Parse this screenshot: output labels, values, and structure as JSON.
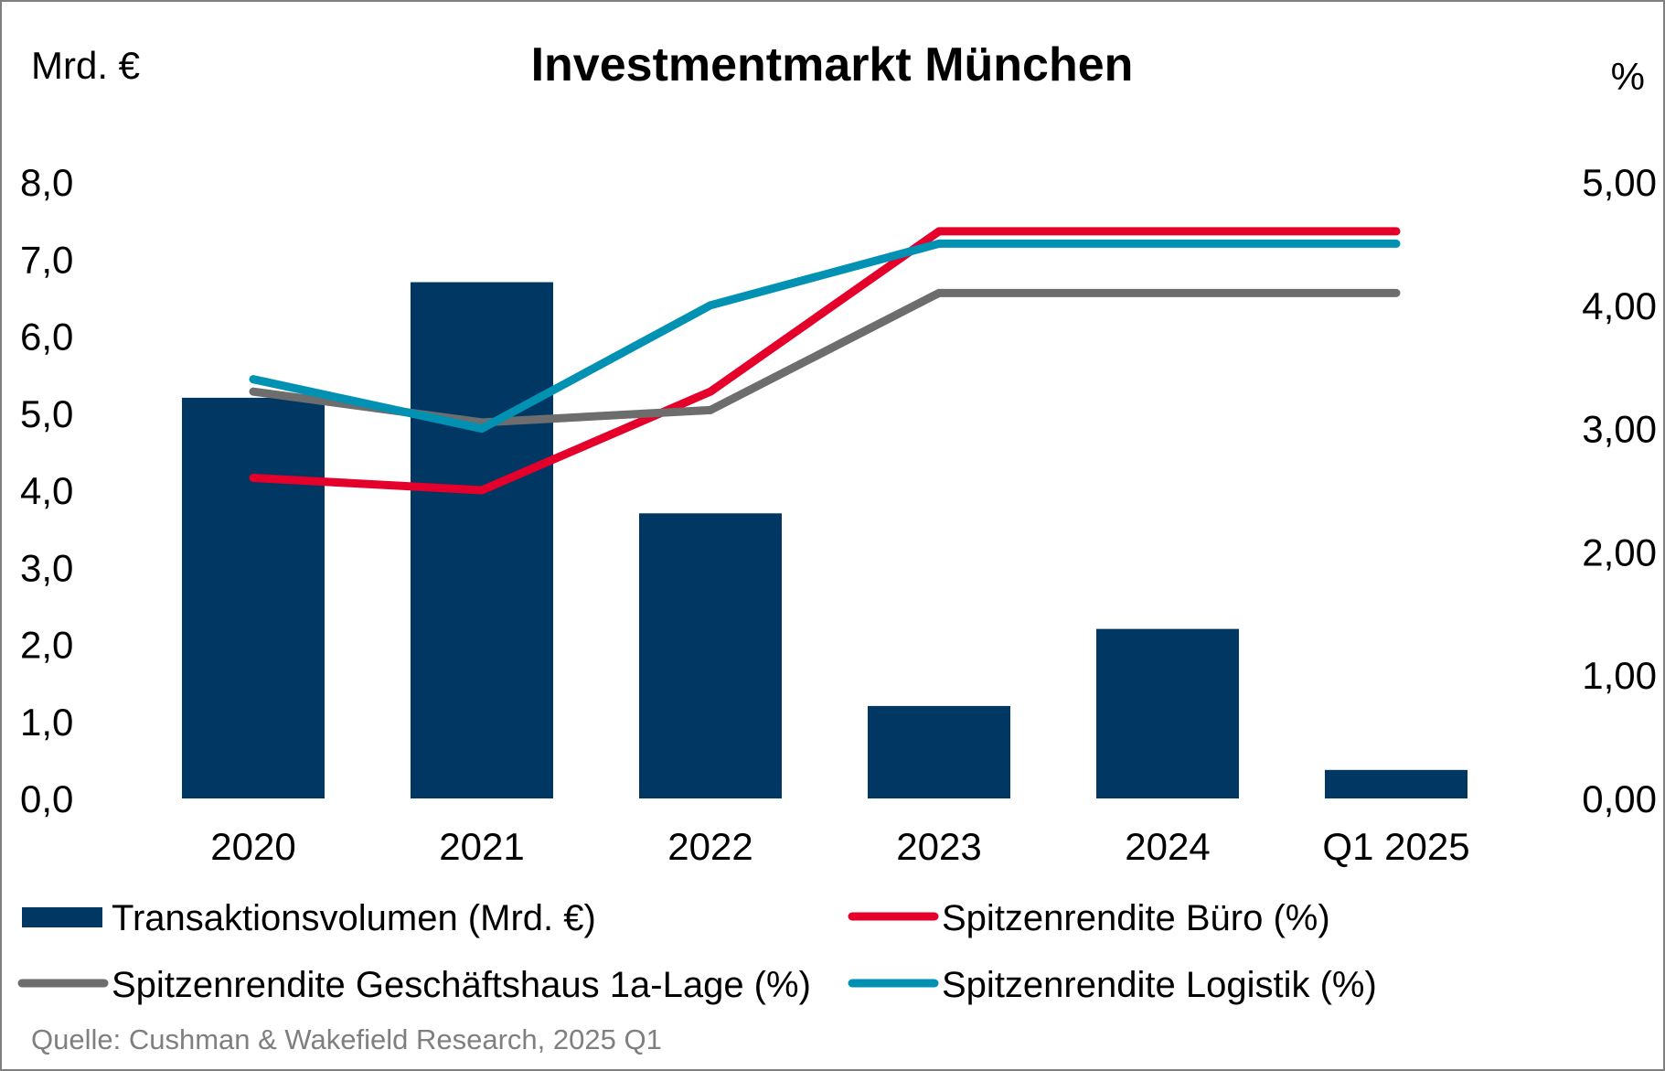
{
  "chart_data": {
    "type": "bar",
    "title": "Investmentmarkt München",
    "ylabel_left": "Mrd. €",
    "ylabel_right": "%",
    "categories": [
      "2020",
      "2021",
      "2022",
      "2023",
      "2024",
      "Q1 2025"
    ],
    "ylim_left": [
      0,
      8
    ],
    "ylim_right": [
      0,
      5
    ],
    "yticks_left": [
      "0,0",
      "1,0",
      "2,0",
      "3,0",
      "4,0",
      "5,0",
      "6,0",
      "7,0",
      "8,0"
    ],
    "yticks_right": [
      "0,00",
      "1,00",
      "2,00",
      "3,00",
      "4,00",
      "5,00"
    ],
    "grid": false,
    "legend_position": "bottom",
    "bars": {
      "name": "Transaktionsvolumen (Mrd. €)",
      "color": "#003763",
      "values": [
        5.2,
        6.7,
        3.7,
        1.2,
        2.2,
        0.37
      ]
    },
    "series": [
      {
        "name": "Spitzenrendite Büro (%)",
        "color": "#e4002b",
        "axis": "right",
        "values": [
          2.6,
          2.5,
          3.3,
          4.6,
          4.6,
          4.6
        ]
      },
      {
        "name": "Spitzenrendite Geschäftshaus 1a-Lage (%)",
        "color": "#6d6d6d",
        "axis": "right",
        "values": [
          3.3,
          3.05,
          3.15,
          4.1,
          4.1,
          4.1
        ]
      },
      {
        "name": "Spitzenrendite Logistik (%)",
        "color": "#0091b3",
        "axis": "right",
        "values": [
          3.4,
          3.0,
          4.0,
          4.5,
          4.5,
          4.5
        ]
      }
    ],
    "source": "Quelle: Cushman & Wakefield Research, 2025 Q1"
  }
}
